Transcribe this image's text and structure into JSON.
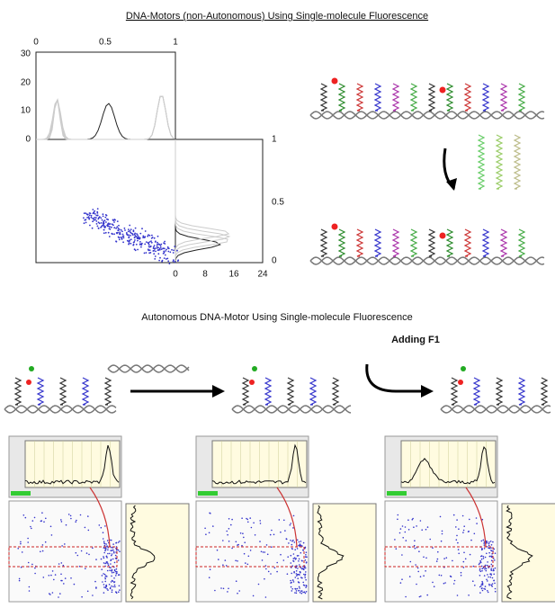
{
  "header": {
    "title": "DNA-Motors (non-Autonomous) Using Single-molecule Fluorescence"
  },
  "plot": {
    "top_axis": [
      "0",
      "0.5",
      "1"
    ],
    "left_axis": [
      "30",
      "20",
      "10",
      "0"
    ],
    "right_axis": [
      "1",
      "0.5",
      "0"
    ],
    "bottom_axis": [
      "0",
      "8",
      "16",
      "24"
    ]
  },
  "section2": {
    "title": "Autonomous DNA-Motor Using Single-molecule Fluorescence",
    "step_label": "Adding F1"
  }
}
